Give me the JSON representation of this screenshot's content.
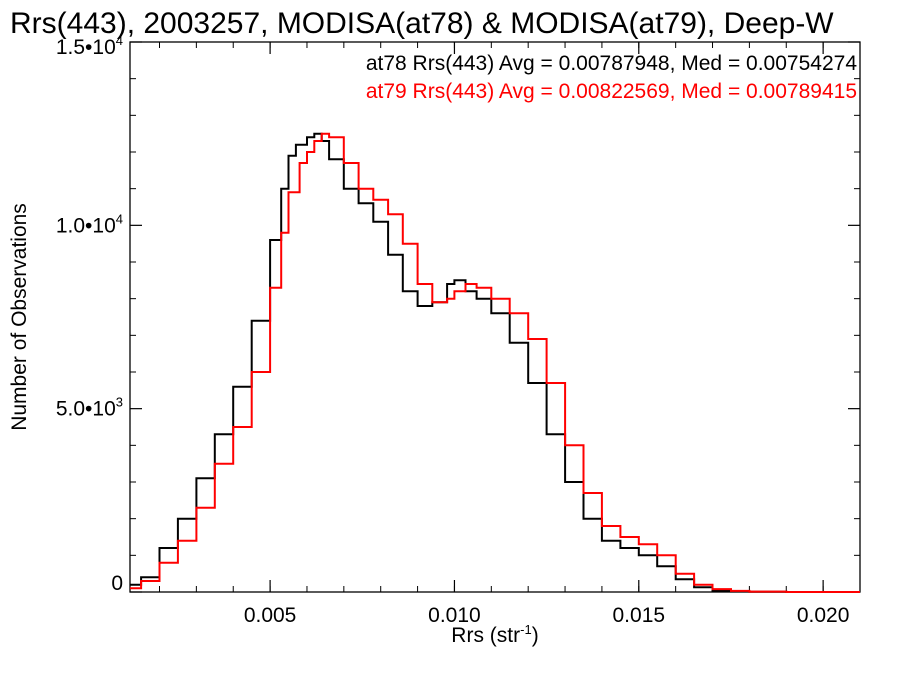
{
  "chart_data": {
    "type": "line",
    "step": true,
    "title": "Rrs(443), 2003257, MODISA(at78) & MODISA(at79), Deep-W",
    "xlabel": {
      "base": "Rrs (str",
      "sup": "-1",
      "close": ")"
    },
    "ylabel": "Number of Observations",
    "xlim": [
      0.0012,
      0.021
    ],
    "ylim": [
      0,
      15000
    ],
    "x_ticks": [
      {
        "value": 0.005,
        "label": "0.005"
      },
      {
        "value": 0.01,
        "label": "0.010"
      },
      {
        "value": 0.015,
        "label": "0.015"
      },
      {
        "value": 0.02,
        "label": "0.020"
      }
    ],
    "y_ticks": [
      {
        "value": 0,
        "mant": "0",
        "exp": ""
      },
      {
        "value": 5000,
        "mant": "5.0•10",
        "exp": "3"
      },
      {
        "value": 10000,
        "mant": "1.0•10",
        "exp": "4"
      },
      {
        "value": 15000,
        "mant": "1.5•10",
        "exp": "4"
      }
    ],
    "legend_position": "top-right",
    "series": [
      {
        "label": "at78 Rrs(443) Avg = 0.00787948, Med = 0.00754274",
        "color": "#000000",
        "x": [
          0.0012,
          0.0015,
          0.002,
          0.0025,
          0.003,
          0.0035,
          0.004,
          0.0045,
          0.005,
          0.0053,
          0.0055,
          0.0057,
          0.006,
          0.0062,
          0.0064,
          0.0066,
          0.007,
          0.0074,
          0.0078,
          0.0082,
          0.0086,
          0.009,
          0.0094,
          0.0098,
          0.01,
          0.0103,
          0.0106,
          0.011,
          0.0115,
          0.012,
          0.0125,
          0.013,
          0.0135,
          0.014,
          0.0145,
          0.015,
          0.0155,
          0.016,
          0.0165,
          0.017,
          0.0175,
          0.018,
          0.019,
          0.02,
          0.021
        ],
        "y": [
          200,
          400,
          1200,
          2000,
          3100,
          4300,
          5600,
          7400,
          9600,
          11000,
          11900,
          12200,
          12400,
          12500,
          12300,
          11800,
          11000,
          10600,
          10100,
          9200,
          8200,
          7800,
          7900,
          8400,
          8500,
          8200,
          8000,
          7600,
          6800,
          5700,
          4300,
          3000,
          2000,
          1400,
          1200,
          1000,
          700,
          350,
          130,
          40,
          15,
          5,
          0,
          0,
          0
        ]
      },
      {
        "label": "at79 Rrs(443) Avg = 0.00822569, Med = 0.00789415",
        "color": "#ff0000",
        "x": [
          0.0012,
          0.0015,
          0.002,
          0.0025,
          0.003,
          0.0035,
          0.004,
          0.0045,
          0.005,
          0.0053,
          0.0055,
          0.0058,
          0.006,
          0.0062,
          0.0064,
          0.0066,
          0.007,
          0.0074,
          0.0078,
          0.0082,
          0.0086,
          0.009,
          0.0094,
          0.0098,
          0.01,
          0.0103,
          0.0106,
          0.011,
          0.0115,
          0.012,
          0.0125,
          0.013,
          0.0135,
          0.014,
          0.0145,
          0.015,
          0.0155,
          0.016,
          0.0165,
          0.017,
          0.0175,
          0.018,
          0.019,
          0.02,
          0.021
        ],
        "y": [
          100,
          300,
          800,
          1400,
          2300,
          3500,
          4500,
          6000,
          8300,
          9800,
          10900,
          11700,
          12000,
          12300,
          12500,
          12400,
          11700,
          11000,
          10700,
          10300,
          9500,
          8400,
          7900,
          8000,
          8200,
          8400,
          8300,
          8000,
          7600,
          6900,
          5700,
          4000,
          2700,
          1800,
          1500,
          1300,
          1000,
          500,
          200,
          80,
          30,
          10,
          0,
          0,
          0
        ]
      }
    ]
  }
}
